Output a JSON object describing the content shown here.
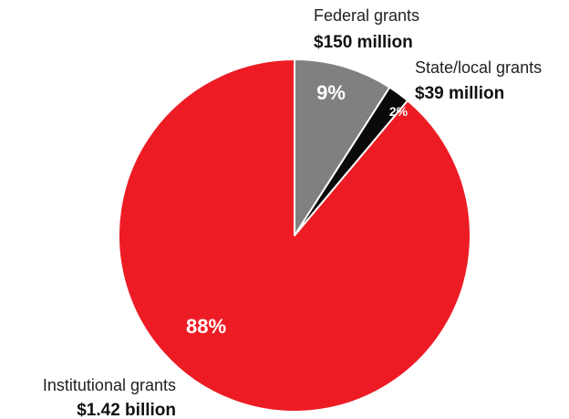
{
  "chart_data": {
    "type": "pie",
    "slices": [
      {
        "label": "Federal grants",
        "amount": "$150 million",
        "percent": 9,
        "percent_label": "9%",
        "color": "#808082"
      },
      {
        "label": "State/local grants",
        "amount": "$39 million",
        "percent": 2,
        "percent_label": "2%",
        "color": "#0a0a0a"
      },
      {
        "label": "Institutional grants",
        "amount": "$1.42 billion",
        "percent": 88,
        "percent_label": "88%",
        "color": "#ed1c24"
      }
    ],
    "start_angle": "12 o'clock",
    "direction": "clockwise",
    "slice_border_color": "#ffffff"
  }
}
